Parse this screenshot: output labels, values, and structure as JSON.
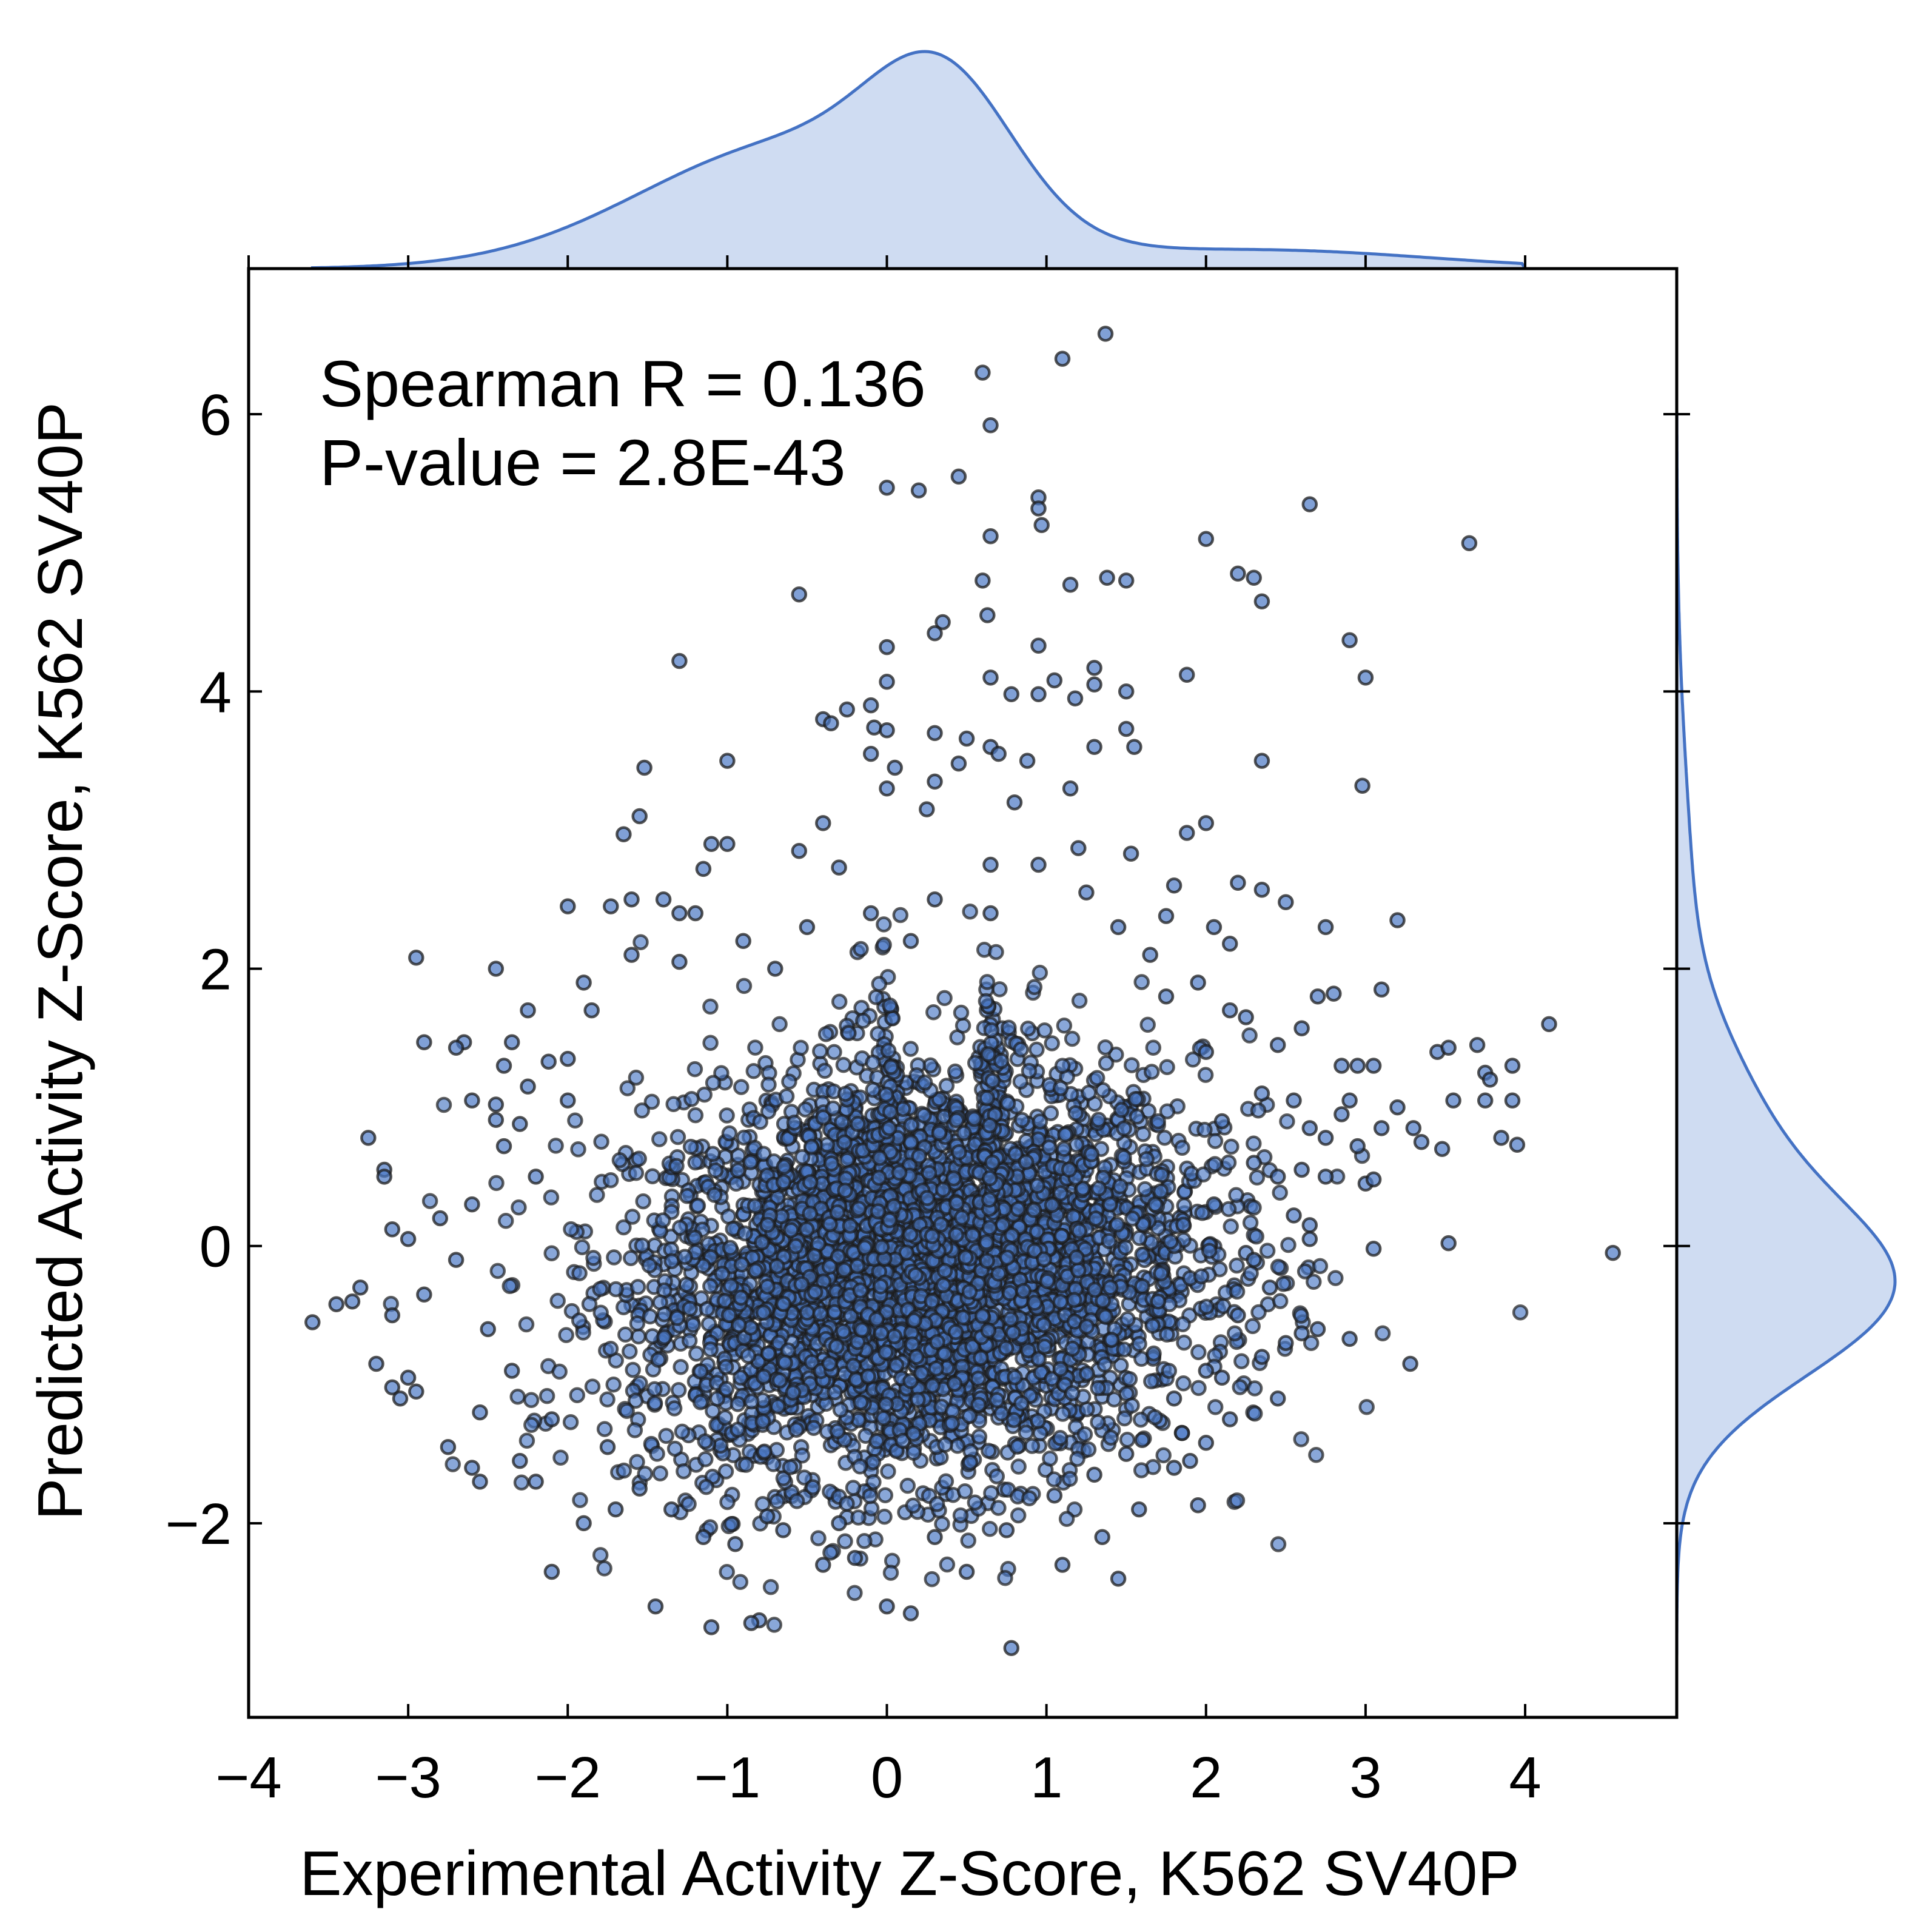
{
  "chart_data": {
    "type": "scatter",
    "title": "",
    "xlabel": "Experimental Activity Z-Score, K562 SV40P",
    "ylabel": "Predicted Activity Z-Score, K562 SV40P",
    "xlim": [
      -4.0,
      4.95
    ],
    "ylim": [
      -3.4,
      7.05
    ],
    "xticks": [
      -4,
      -3,
      -2,
      -1,
      0,
      1,
      2,
      3,
      4
    ],
    "xtick_labels": [
      "−4",
      "−3",
      "−2",
      "−1",
      "0",
      "1",
      "2",
      "3",
      "4"
    ],
    "yticks": [
      -2,
      0,
      2,
      4,
      6
    ],
    "ytick_labels": [
      "−2",
      "0",
      "2",
      "4",
      "6"
    ],
    "grid": false,
    "annotations": [
      "Spearman R = 0.136",
      "P-value = 2.8E-43"
    ],
    "marker_color": "#4a78c4",
    "marker_edge_color": "#1c1c1c",
    "kde_color": "#4472c4",
    "kde_fill": "#cfdcf2",
    "points": [
      {
        "x": 1.37,
        "y": 6.58
      },
      {
        "x": 1.1,
        "y": 6.4
      },
      {
        "x": 0.6,
        "y": 6.3
      },
      {
        "x": 0.65,
        "y": 5.92
      },
      {
        "x": 0.45,
        "y": 5.55
      },
      {
        "x": 0.0,
        "y": 5.47
      },
      {
        "x": 0.2,
        "y": 5.45
      },
      {
        "x": 0.95,
        "y": 5.4
      },
      {
        "x": 0.95,
        "y": 5.32
      },
      {
        "x": 0.97,
        "y": 5.2
      },
      {
        "x": 2.65,
        "y": 5.35
      },
      {
        "x": 0.65,
        "y": 5.12
      },
      {
        "x": 2.0,
        "y": 5.1
      },
      {
        "x": 3.65,
        "y": 5.07
      },
      {
        "x": 2.2,
        "y": 4.85
      },
      {
        "x": 2.3,
        "y": 4.82
      },
      {
        "x": 1.38,
        "y": 4.82
      },
      {
        "x": 1.5,
        "y": 4.8
      },
      {
        "x": 0.6,
        "y": 4.8
      },
      {
        "x": 1.15,
        "y": 4.77
      },
      {
        "x": -0.55,
        "y": 4.7
      },
      {
        "x": 2.35,
        "y": 4.65
      },
      {
        "x": 0.63,
        "y": 4.55
      },
      {
        "x": 0.35,
        "y": 4.5
      },
      {
        "x": 0.3,
        "y": 4.42
      },
      {
        "x": 2.9,
        "y": 4.37
      },
      {
        "x": 0.95,
        "y": 4.33
      },
      {
        "x": 0.0,
        "y": 4.32
      },
      {
        "x": -1.3,
        "y": 4.22
      },
      {
        "x": 1.3,
        "y": 4.17
      },
      {
        "x": 3.0,
        "y": 4.1
      },
      {
        "x": 1.88,
        "y": 4.12
      },
      {
        "x": 0.65,
        "y": 4.1
      },
      {
        "x": 1.05,
        "y": 4.08
      },
      {
        "x": 0.0,
        "y": 4.07
      },
      {
        "x": 1.3,
        "y": 4.05
      },
      {
        "x": 1.5,
        "y": 4.0
      },
      {
        "x": 0.78,
        "y": 3.98
      },
      {
        "x": 0.95,
        "y": 3.98
      },
      {
        "x": 1.18,
        "y": 3.95
      },
      {
        "x": -0.4,
        "y": 3.8
      },
      {
        "x": -0.35,
        "y": 3.77
      },
      {
        "x": -0.25,
        "y": 3.87
      },
      {
        "x": -0.1,
        "y": 3.9
      },
      {
        "x": -0.08,
        "y": 3.74
      },
      {
        "x": 0.0,
        "y": 3.72
      },
      {
        "x": 0.3,
        "y": 3.7
      },
      {
        "x": 0.5,
        "y": 3.66
      },
      {
        "x": 1.5,
        "y": 3.73
      },
      {
        "x": 1.3,
        "y": 3.6
      },
      {
        "x": 1.55,
        "y": 3.6
      },
      {
        "x": 0.65,
        "y": 3.6
      },
      {
        "x": -1.0,
        "y": 3.5
      },
      {
        "x": -1.52,
        "y": 3.45
      },
      {
        "x": 2.35,
        "y": 3.5
      },
      {
        "x": 0.88,
        "y": 3.5
      },
      {
        "x": 0.45,
        "y": 3.48
      },
      {
        "x": -0.1,
        "y": 3.55
      },
      {
        "x": 0.05,
        "y": 3.45
      },
      {
        "x": 0.7,
        "y": 3.55
      },
      {
        "x": 0.3,
        "y": 3.35
      },
      {
        "x": 2.98,
        "y": 3.32
      },
      {
        "x": 0.0,
        "y": 3.3
      },
      {
        "x": 1.15,
        "y": 3.3
      },
      {
        "x": -1.55,
        "y": 3.1
      },
      {
        "x": -0.4,
        "y": 3.05
      },
      {
        "x": 0.25,
        "y": 3.15
      },
      {
        "x": 0.8,
        "y": 3.2
      },
      {
        "x": 2.0,
        "y": 3.05
      },
      {
        "x": 1.88,
        "y": 2.98
      },
      {
        "x": -1.65,
        "y": 2.97
      },
      {
        "x": -1.0,
        "y": 2.9
      },
      {
        "x": -1.1,
        "y": 2.9
      },
      {
        "x": -0.55,
        "y": 2.85
      },
      {
        "x": 1.2,
        "y": 2.87
      },
      {
        "x": 1.53,
        "y": 2.83
      },
      {
        "x": -1.15,
        "y": 2.72
      },
      {
        "x": -0.3,
        "y": 2.73
      },
      {
        "x": 0.65,
        "y": 2.75
      },
      {
        "x": -2.0,
        "y": 2.45
      },
      {
        "x": -1.73,
        "y": 2.45
      },
      {
        "x": -1.6,
        "y": 2.5
      },
      {
        "x": -1.4,
        "y": 2.5
      },
      {
        "x": 1.8,
        "y": 2.6
      },
      {
        "x": 2.2,
        "y": 2.62
      },
      {
        "x": 2.35,
        "y": 2.57
      },
      {
        "x": 2.5,
        "y": 2.48
      },
      {
        "x": -2.95,
        "y": 2.08
      },
      {
        "x": -2.45,
        "y": 2.0
      },
      {
        "x": -1.9,
        "y": 1.9
      },
      {
        "x": -1.3,
        "y": 2.4
      },
      {
        "x": -1.2,
        "y": 2.4
      },
      {
        "x": 3.2,
        "y": 2.35
      },
      {
        "x": 2.75,
        "y": 2.3
      },
      {
        "x": 2.05,
        "y": 2.3
      },
      {
        "x": 2.15,
        "y": 2.18
      },
      {
        "x": 1.75,
        "y": 2.38
      },
      {
        "x": -2.25,
        "y": 1.7
      },
      {
        "x": -2.9,
        "y": 1.47
      },
      {
        "x": -2.35,
        "y": 1.47
      },
      {
        "x": -2.65,
        "y": 1.47
      },
      {
        "x": -2.7,
        "y": 1.43
      },
      {
        "x": 2.7,
        "y": 1.8
      },
      {
        "x": 2.8,
        "y": 1.82
      },
      {
        "x": 3.1,
        "y": 1.85
      },
      {
        "x": 4.15,
        "y": 1.6
      },
      {
        "x": 3.45,
        "y": 1.4
      },
      {
        "x": 3.52,
        "y": 1.43
      },
      {
        "x": 3.7,
        "y": 1.45
      },
      {
        "x": 2.6,
        "y": 1.57
      },
      {
        "x": 2.45,
        "y": 1.45
      },
      {
        "x": 2.25,
        "y": 1.65
      },
      {
        "x": -2.0,
        "y": 1.35
      },
      {
        "x": -2.12,
        "y": 1.33
      },
      {
        "x": -2.25,
        "y": 1.15
      },
      {
        "x": -2.6,
        "y": 1.05
      },
      {
        "x": -2.45,
        "y": 1.02
      },
      {
        "x": -3.25,
        "y": 0.78
      },
      {
        "x": -2.4,
        "y": 0.72
      },
      {
        "x": -2.45,
        "y": 0.91
      },
      {
        "x": -2.3,
        "y": 0.88
      },
      {
        "x": -2.0,
        "y": 1.05
      },
      {
        "x": 2.95,
        "y": 1.3
      },
      {
        "x": 3.05,
        "y": 1.3
      },
      {
        "x": 2.85,
        "y": 1.3
      },
      {
        "x": 3.75,
        "y": 1.25
      },
      {
        "x": 3.78,
        "y": 1.2
      },
      {
        "x": 3.92,
        "y": 1.3
      },
      {
        "x": 3.55,
        "y": 1.05
      },
      {
        "x": 3.75,
        "y": 1.05
      },
      {
        "x": 3.92,
        "y": 1.05
      },
      {
        "x": 3.2,
        "y": 1.0
      },
      {
        "x": 3.3,
        "y": 0.85
      },
      {
        "x": 3.35,
        "y": 0.75
      },
      {
        "x": 3.48,
        "y": 0.7
      },
      {
        "x": 3.85,
        "y": 0.78
      },
      {
        "x": 3.95,
        "y": 0.73
      },
      {
        "x": 3.1,
        "y": 0.85
      },
      {
        "x": 2.9,
        "y": 1.05
      },
      {
        "x": 2.85,
        "y": 0.95
      },
      {
        "x": 2.55,
        "y": 1.05
      },
      {
        "x": 2.65,
        "y": 0.85
      },
      {
        "x": 2.75,
        "y": 0.78
      },
      {
        "x": 2.95,
        "y": 0.72
      },
      {
        "x": 2.6,
        "y": 0.55
      },
      {
        "x": 2.75,
        "y": 0.5
      },
      {
        "x": 2.45,
        "y": 0.5
      },
      {
        "x": 3.0,
        "y": 0.45
      },
      {
        "x": 3.05,
        "y": 0.48
      },
      {
        "x": 2.55,
        "y": 0.22
      },
      {
        "x": 2.65,
        "y": 0.15
      },
      {
        "x": 2.65,
        "y": 0.05
      },
      {
        "x": 3.52,
        "y": 0.02
      },
      {
        "x": 3.05,
        "y": -0.02
      },
      {
        "x": 4.55,
        "y": -0.05
      },
      {
        "x": 2.25,
        "y": -0.05
      },
      {
        "x": 2.7,
        "y": -0.6
      },
      {
        "x": 2.6,
        "y": -0.63
      },
      {
        "x": 2.9,
        "y": -0.67
      },
      {
        "x": 3.28,
        "y": -0.85
      },
      {
        "x": -3.15,
        "y": 0.55
      },
      {
        "x": -3.15,
        "y": 0.5
      },
      {
        "x": -3.1,
        "y": 0.12
      },
      {
        "x": -3.0,
        "y": 0.05
      },
      {
        "x": -2.8,
        "y": 0.2
      },
      {
        "x": -3.3,
        "y": -0.3
      },
      {
        "x": -3.35,
        "y": -0.4
      },
      {
        "x": -3.45,
        "y": -0.42
      },
      {
        "x": -3.6,
        "y": -0.55
      },
      {
        "x": -3.1,
        "y": -0.5
      },
      {
        "x": -2.9,
        "y": -0.35
      },
      {
        "x": -3.2,
        "y": -0.85
      },
      {
        "x": -3.1,
        "y": -1.02
      },
      {
        "x": -3.05,
        "y": -1.1
      },
      {
        "x": -2.95,
        "y": -1.05
      },
      {
        "x": -3.0,
        "y": -0.95
      },
      {
        "x": -2.75,
        "y": -1.45
      },
      {
        "x": -2.6,
        "y": -1.6
      },
      {
        "x": -2.55,
        "y": -1.7
      },
      {
        "x": -2.2,
        "y": -1.7
      },
      {
        "x": -2.1,
        "y": -2.35
      },
      {
        "x": -1.45,
        "y": -2.6
      },
      {
        "x": -1.1,
        "y": -2.75
      },
      {
        "x": -0.8,
        "y": -2.7
      },
      {
        "x": -0.85,
        "y": -2.72
      },
      {
        "x": 0.0,
        "y": -2.6
      },
      {
        "x": 0.15,
        "y": -2.65
      },
      {
        "x": 0.78,
        "y": -2.9
      },
      {
        "x": 1.45,
        "y": -2.4
      },
      {
        "x": 1.58,
        "y": -1.9
      },
      {
        "x": 1.95,
        "y": -1.87
      },
      {
        "x": 1.9,
        "y": -1.55
      },
      {
        "x": 2.0,
        "y": -1.42
      },
      {
        "x": 1.8,
        "y": -1.6
      },
      {
        "x": 1.5,
        "y": -1.5
      },
      {
        "x": 1.35,
        "y": -2.1
      },
      {
        "x": 1.1,
        "y": -2.3
      },
      {
        "x": 0.5,
        "y": -2.35
      },
      {
        "x": -0.2,
        "y": -2.25
      },
      {
        "x": -0.4,
        "y": -2.3
      },
      {
        "x": -0.65,
        "y": -2.05
      },
      {
        "x": -0.95,
        "y": -2.15
      },
      {
        "x": -1.15,
        "y": -2.1
      },
      {
        "x": -1.9,
        "y": -2.0
      },
      {
        "x": -1.7,
        "y": -1.9
      },
      {
        "x": -2.3,
        "y": -1.55
      },
      {
        "x": -1.75,
        "y": -1.45
      },
      {
        "x": 1.85,
        "y": -1.35
      },
      {
        "x": 2.15,
        "y": -1.25
      },
      {
        "x": 2.45,
        "y": -1.1
      },
      {
        "x": 2.1,
        "y": -0.95
      },
      {
        "x": 2.35,
        "y": -0.8
      },
      {
        "x": 2.5,
        "y": -0.7
      },
      {
        "x": 2.2,
        "y": -0.5
      },
      {
        "x": 2.4,
        "y": -0.3
      },
      {
        "x": 2.3,
        "y": -0.1
      },
      {
        "x": 2.0,
        "y": -0.9
      },
      {
        "x": 1.8,
        "y": -1.1
      },
      {
        "x": 1.7,
        "y": -0.4
      },
      {
        "x": 2.05,
        "y": 0.3
      },
      {
        "x": 2.3,
        "y": 0.6
      },
      {
        "x": 2.1,
        "y": 0.9
      },
      {
        "x": 2.35,
        "y": 1.1
      },
      {
        "x": 2.0,
        "y": 1.4
      },
      {
        "x": 2.15,
        "y": 1.7
      },
      {
        "x": 1.95,
        "y": 1.9
      },
      {
        "x": 1.65,
        "y": 2.1
      },
      {
        "x": 1.45,
        "y": 2.3
      },
      {
        "x": 1.25,
        "y": 2.55
      },
      {
        "x": 0.95,
        "y": 2.75
      },
      {
        "x": -2.4,
        "y": 1.3
      },
      {
        "x": -2.2,
        "y": 0.5
      },
      {
        "x": -2.6,
        "y": 0.3
      },
      {
        "x": -2.7,
        "y": -0.1
      },
      {
        "x": -2.5,
        "y": -0.6
      },
      {
        "x": -2.35,
        "y": -0.9
      },
      {
        "x": -2.55,
        "y": -1.2
      },
      {
        "x": -2.1,
        "y": -1.25
      },
      {
        "x": -1.55,
        "y": -1.75
      },
      {
        "x": -1.35,
        "y": -1.9
      },
      {
        "x": -0.75,
        "y": -1.95
      },
      {
        "x": -0.3,
        "y": -2.0
      },
      {
        "x": 0.3,
        "y": -2.1
      },
      {
        "x": 0.75,
        "y": -2.05
      },
      {
        "x": 1.05,
        "y": -1.8
      },
      {
        "x": 1.3,
        "y": -1.65
      },
      {
        "x": 1.6,
        "y": -1.4
      },
      {
        "x": -1.6,
        "y": 2.1
      },
      {
        "x": -1.3,
        "y": 2.05
      },
      {
        "x": -0.9,
        "y": 2.2
      },
      {
        "x": -0.5,
        "y": 2.3
      },
      {
        "x": -0.1,
        "y": 2.4
      },
      {
        "x": 0.3,
        "y": 2.5
      },
      {
        "x": 0.65,
        "y": 2.4
      },
      {
        "x": -1.85,
        "y": 1.7
      },
      {
        "x": 1.75,
        "y": 1.8
      },
      {
        "x": -0.7,
        "y": 2.0
      },
      {
        "x": 0.15,
        "y": 2.2
      }
    ]
  }
}
